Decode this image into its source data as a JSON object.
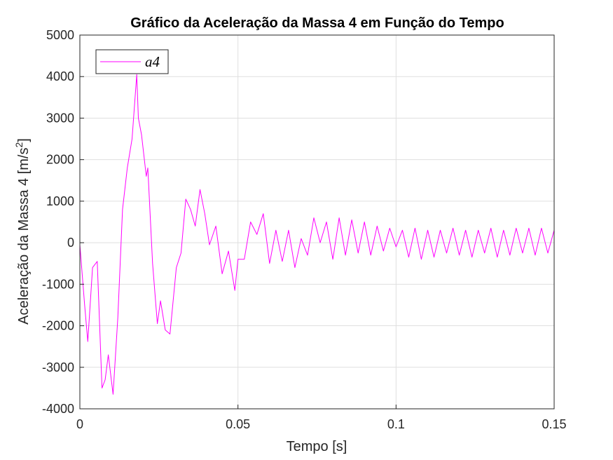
{
  "chart_data": {
    "type": "line",
    "title": "Gráfico da Aceleração da Massa 4 em Função do Tempo",
    "xlabel": "Tempo [s]",
    "ylabel_main": "Aceleração da Massa 4 [m/s",
    "ylabel_sup": "2",
    "ylabel_end": "]",
    "xlim": [
      0,
      0.15
    ],
    "ylim": [
      -4000,
      5000
    ],
    "xticks": [
      0,
      0.05,
      0.1,
      0.15
    ],
    "xtick_labels": [
      "0",
      "0.05",
      "0.1",
      "0.15"
    ],
    "yticks": [
      -4000,
      -3000,
      -2000,
      -1000,
      0,
      1000,
      2000,
      3000,
      4000,
      5000
    ],
    "ytick_labels": [
      "-4000",
      "-3000",
      "-2000",
      "-1000",
      "0",
      "1000",
      "2000",
      "3000",
      "4000",
      "5000"
    ],
    "grid": true,
    "legend_position": "top-left",
    "series": [
      {
        "name": "a4",
        "color": "#ff00ff",
        "x": [
          0,
          0.0015,
          0.0025,
          0.004,
          0.0055,
          0.007,
          0.008,
          0.009,
          0.0105,
          0.012,
          0.0135,
          0.015,
          0.0165,
          0.018,
          0.0185,
          0.0195,
          0.021,
          0.0215,
          0.023,
          0.0245,
          0.0255,
          0.027,
          0.0285,
          0.0305,
          0.032,
          0.0335,
          0.035,
          0.0365,
          0.038,
          0.0395,
          0.041,
          0.043,
          0.045,
          0.047,
          0.049,
          0.05,
          0.052,
          0.054,
          0.056,
          0.058,
          0.06,
          0.062,
          0.064,
          0.066,
          0.068,
          0.07,
          0.072,
          0.074,
          0.076,
          0.078,
          0.08,
          0.082,
          0.084,
          0.086,
          0.088,
          0.09,
          0.092,
          0.094,
          0.096,
          0.098,
          0.1,
          0.102,
          0.104,
          0.106,
          0.108,
          0.11,
          0.112,
          0.114,
          0.116,
          0.118,
          0.12,
          0.122,
          0.124,
          0.126,
          0.128,
          0.13,
          0.132,
          0.134,
          0.136,
          0.138,
          0.14,
          0.142,
          0.144,
          0.146,
          0.148,
          0.15
        ],
        "y": [
          -50,
          -1500,
          -2380,
          -600,
          -450,
          -3500,
          -3300,
          -2700,
          -3650,
          -1800,
          800,
          1800,
          2500,
          4050,
          3000,
          2600,
          1600,
          1800,
          -500,
          -1950,
          -1400,
          -2100,
          -2200,
          -600,
          -250,
          1050,
          800,
          400,
          1280,
          700,
          -50,
          400,
          -750,
          -200,
          -1150,
          -400,
          -400,
          500,
          200,
          700,
          -500,
          300,
          -450,
          300,
          -600,
          100,
          -300,
          600,
          0,
          500,
          -400,
          600,
          -300,
          550,
          -250,
          500,
          -300,
          400,
          -200,
          350,
          -100,
          300,
          -350,
          350,
          -400,
          300,
          -350,
          300,
          -250,
          350,
          -300,
          300,
          -350,
          300,
          -250,
          350,
          -350,
          300,
          -300,
          350,
          -250,
          350,
          -300,
          350,
          -250,
          300
        ]
      }
    ]
  }
}
